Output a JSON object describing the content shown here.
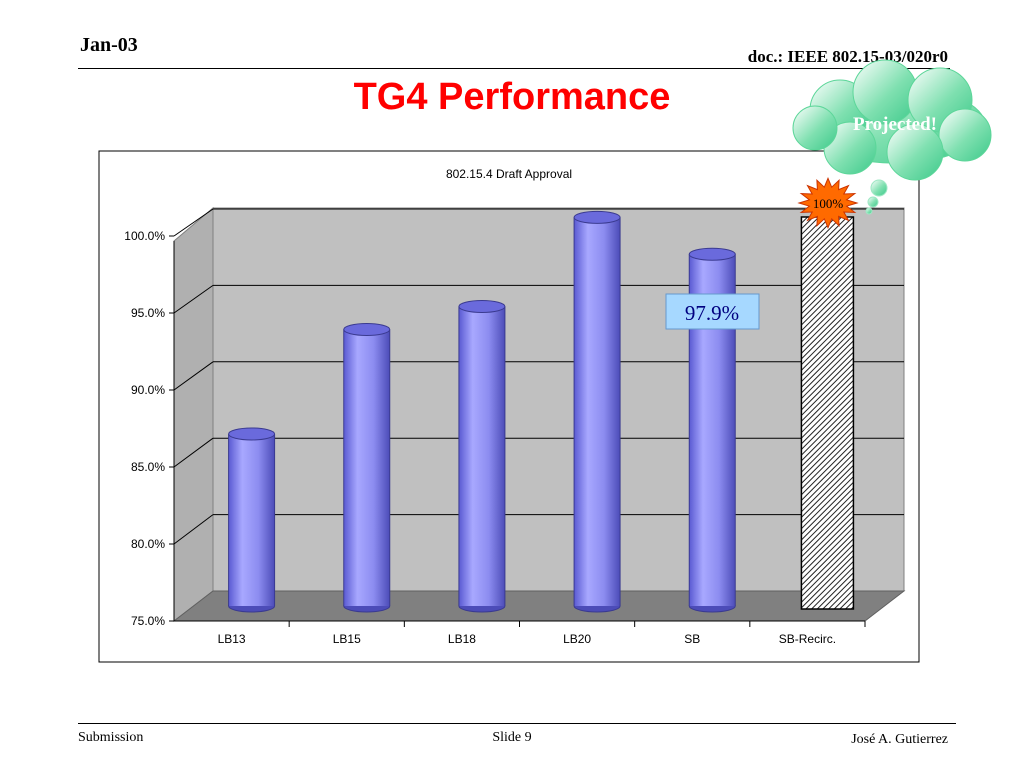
{
  "header": {
    "date": "Jan-03",
    "doc_id": "doc.: IEEE 802.15-03/020r0"
  },
  "slide_title": "TG4 Performance",
  "callouts": {
    "cloud": "Projected!",
    "starburst": "100%",
    "value_box": "97.9%"
  },
  "footer": {
    "left": "Submission",
    "center": "Slide 9",
    "right": "José A. Gutierrez"
  },
  "colors": {
    "title": "#ff0000",
    "bar": "#8c8cf0",
    "cloud": "#5cd699",
    "starburst": "#ff6a00",
    "value_box": "#a6d8ff",
    "wall": "#c0c0c0",
    "floor": "#808080"
  },
  "chart_data": {
    "type": "bar",
    "title": "802.15.4 Draft Approval",
    "categories": [
      "LB13",
      "LB15",
      "LB18",
      "LB20",
      "SB",
      "SB-Recirc."
    ],
    "values": [
      86.2,
      93.0,
      94.5,
      100.3,
      97.9,
      100.0
    ],
    "projected": [
      false,
      false,
      false,
      false,
      false,
      true
    ],
    "yticks": [
      "75.0%",
      "80.0%",
      "85.0%",
      "90.0%",
      "95.0%",
      "100.0%"
    ],
    "ylim": [
      75,
      100
    ],
    "style": "3d-cylinder",
    "grid": true,
    "legend": "none",
    "xlabel": "",
    "ylabel": ""
  }
}
